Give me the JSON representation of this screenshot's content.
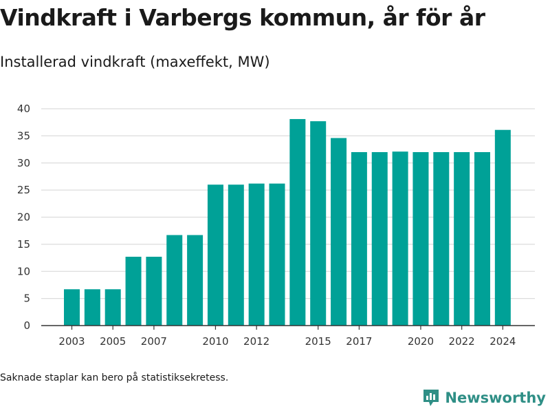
{
  "header": {
    "title": "Vindkraft i Varbergs kommun, år för år",
    "subtitle": "Installerad vindkraft (maxeffekt, MW)"
  },
  "footer": {
    "note": "Saknade staplar kan bero på statistiksekretess.",
    "brand": "Newsworthy",
    "brand_icon": "bar-chart-logo-icon"
  },
  "colors": {
    "bar": "#00a197",
    "grid": "#dcdcdc",
    "axis": "#333333",
    "brand": "#2f8f86"
  },
  "chart_data": {
    "type": "bar",
    "categories": [
      "2003",
      "2004",
      "2005",
      "2006",
      "2007",
      "2008",
      "2009",
      "2010",
      "2011",
      "2012",
      "2013",
      "2014",
      "2015",
      "2016",
      "2017",
      "2018",
      "2019",
      "2020",
      "2021",
      "2022",
      "2023",
      "2024"
    ],
    "values": [
      6.7,
      6.7,
      6.7,
      12.7,
      12.7,
      16.7,
      16.7,
      26.0,
      26.0,
      26.2,
      26.2,
      38.1,
      37.7,
      34.6,
      32.0,
      32.0,
      32.1,
      32.0,
      32.0,
      32.0,
      32.0,
      36.1
    ],
    "x_tick_labels": [
      "2003",
      "2005",
      "2007",
      "2010",
      "2012",
      "2015",
      "2017",
      "2020",
      "2022",
      "2024"
    ],
    "y_ticks": [
      0,
      5,
      10,
      15,
      20,
      25,
      30,
      35,
      40
    ],
    "ylim": [
      0,
      40
    ],
    "xlabel": "",
    "ylabel": "",
    "grid": true,
    "legend": "none"
  }
}
